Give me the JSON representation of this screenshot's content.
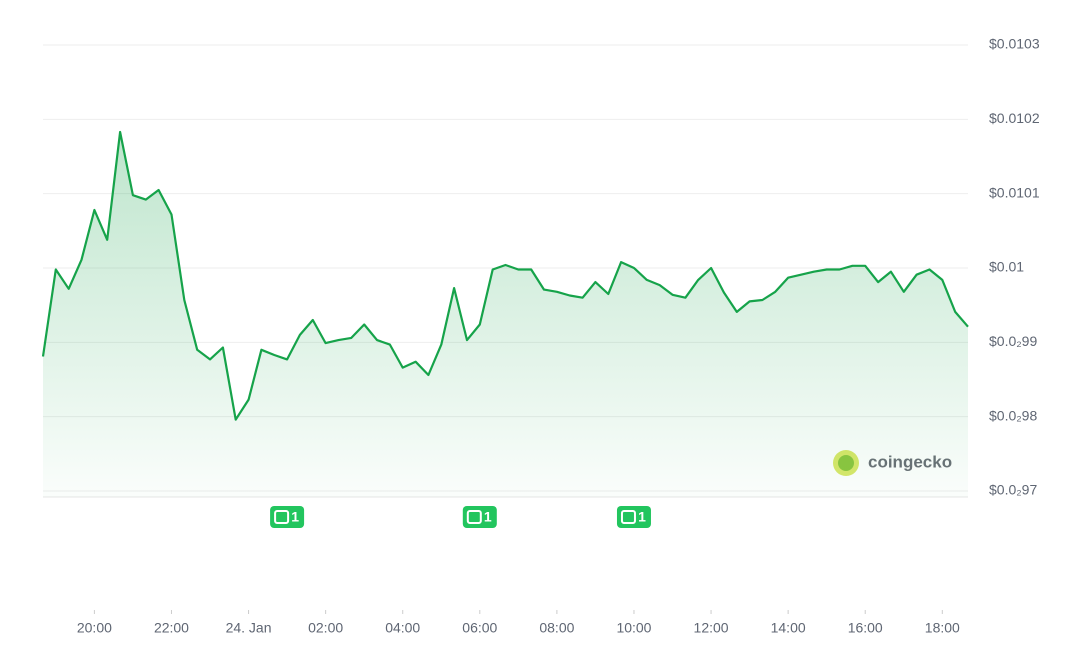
{
  "chart_data": {
    "type": "line",
    "xlim": [
      0,
      72
    ],
    "xticks": [
      {
        "value": 4,
        "label": "20:00"
      },
      {
        "value": 10,
        "label": "22:00"
      },
      {
        "value": 16,
        "label": "24. Jan"
      },
      {
        "value": 22,
        "label": "02:00"
      },
      {
        "value": 28,
        "label": "04:00"
      },
      {
        "value": 34,
        "label": "06:00"
      },
      {
        "value": 40,
        "label": "08:00"
      },
      {
        "value": 46,
        "label": "10:00"
      },
      {
        "value": 52,
        "label": "12:00"
      },
      {
        "value": 58,
        "label": "14:00"
      },
      {
        "value": 64,
        "label": "16:00"
      },
      {
        "value": 70,
        "label": "18:00"
      }
    ],
    "ylim": [
      0.0097,
      0.0103
    ],
    "yticks": [
      {
        "value": 0.0103,
        "label": "$0.0103"
      },
      {
        "value": 0.0102,
        "label": "$0.0102"
      },
      {
        "value": 0.0101,
        "label": "$0.0101"
      },
      {
        "value": 0.01,
        "label": "$0.01"
      },
      {
        "value": 0.0099,
        "label": "$0.0₂99"
      },
      {
        "value": 0.0098,
        "label": "$0.0₂98"
      },
      {
        "value": 0.0097,
        "label": "$0.0₂97"
      }
    ],
    "grid": true,
    "color": "#16a34a",
    "values": [
      0.009881,
      0.009998,
      0.009972,
      0.010011,
      0.010078,
      0.010038,
      0.010183,
      0.010098,
      0.010092,
      0.010105,
      0.010072,
      0.009957,
      0.00989,
      0.009877,
      0.009893,
      0.009796,
      0.009823,
      0.00989,
      0.009883,
      0.009877,
      0.00991,
      0.00993,
      0.009899,
      0.009903,
      0.009906,
      0.009924,
      0.009903,
      0.009897,
      0.009866,
      0.009874,
      0.009856,
      0.009897,
      0.009973,
      0.009903,
      0.009924,
      0.009998,
      0.010004,
      0.009998,
      0.009998,
      0.009971,
      0.009968,
      0.009963,
      0.00996,
      0.009981,
      0.009965,
      0.010008,
      0.01,
      0.009984,
      0.009977,
      0.009964,
      0.00996,
      0.009984,
      0.01,
      0.009967,
      0.009941,
      0.009955,
      0.009957,
      0.009968,
      0.009987,
      0.009991,
      0.009995,
      0.009998,
      0.009998,
      0.010003,
      0.010003,
      0.009981,
      0.009995,
      0.009968,
      0.009991,
      0.009998,
      0.009984,
      0.009941,
      0.009921
    ],
    "annotations": [
      {
        "x": 19,
        "label": "1"
      },
      {
        "x": 34,
        "label": "1"
      },
      {
        "x": 46,
        "label": "1"
      }
    ],
    "logo": "coingecko"
  }
}
